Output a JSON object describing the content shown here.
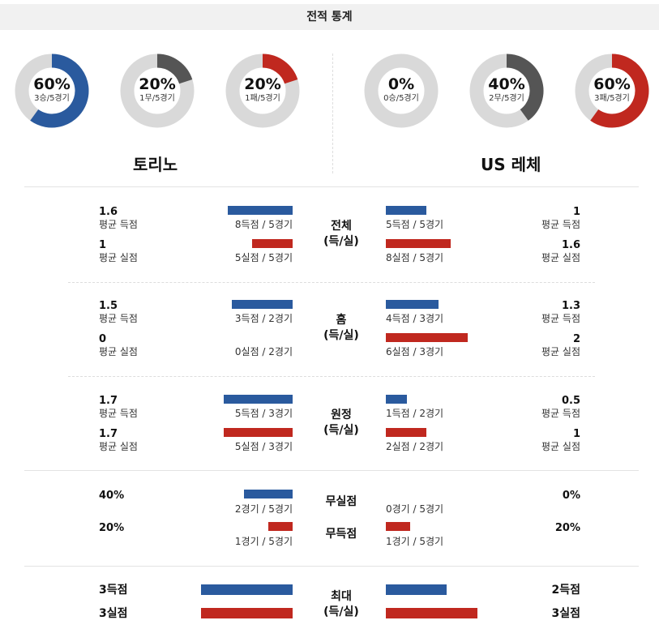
{
  "header": {
    "title": "전적 통계"
  },
  "teams": {
    "home": "토리노",
    "away": "US 레체"
  },
  "donuts": [
    {
      "pct": "60%",
      "sub": "3승/5경기",
      "fraction": 0.6,
      "color": "#2a5a9e"
    },
    {
      "pct": "20%",
      "sub": "1무/5경기",
      "fraction": 0.2,
      "color": "#555555"
    },
    {
      "pct": "20%",
      "sub": "1패/5경기",
      "fraction": 0.2,
      "color": "#c0281f"
    },
    {
      "pct": "0%",
      "sub": "0승/5경기",
      "fraction": 0.0,
      "color": "#2a5a9e"
    },
    {
      "pct": "40%",
      "sub": "2무/5경기",
      "fraction": 0.4,
      "color": "#555555"
    },
    {
      "pct": "60%",
      "sub": "3패/5경기",
      "fraction": 0.6,
      "color": "#c0281f"
    }
  ],
  "labels": {
    "avg_scored": "평균 득점",
    "avg_conceded": "평균 실점"
  },
  "sections": {
    "overall": {
      "title1": "전체",
      "title2": "(득/실)",
      "home": {
        "scored": "1.6",
        "conceded": "1",
        "scored_cap": "8득점 / 5경기",
        "conceded_cap": "5실점 / 5경기",
        "scored_frac": 0.53,
        "conceded_frac": 0.33
      },
      "away": {
        "scored": "1",
        "conceded": "1.6",
        "scored_cap": "5득점 / 5경기",
        "conceded_cap": "8실점 / 5경기",
        "scored_frac": 0.33,
        "conceded_frac": 0.53
      }
    },
    "home_games": {
      "title1": "홈",
      "title2": "(득/실)",
      "home": {
        "scored": "1.5",
        "conceded": "0",
        "scored_cap": "3득점 / 2경기",
        "conceded_cap": "0실점 / 2경기",
        "scored_frac": 0.5,
        "conceded_frac": 0.0
      },
      "away": {
        "scored": "1.3",
        "conceded": "2",
        "scored_cap": "4득점 / 3경기",
        "conceded_cap": "6실점 / 3경기",
        "scored_frac": 0.43,
        "conceded_frac": 0.67
      }
    },
    "away_games": {
      "title1": "원정",
      "title2": "(득/실)",
      "home": {
        "scored": "1.7",
        "conceded": "1.7",
        "scored_cap": "5득점 / 3경기",
        "conceded_cap": "5실점 / 3경기",
        "scored_frac": 0.57,
        "conceded_frac": 0.57
      },
      "away": {
        "scored": "0.5",
        "conceded": "1",
        "scored_cap": "1득점 / 2경기",
        "conceded_cap": "2실점 / 2경기",
        "scored_frac": 0.17,
        "conceded_frac": 0.33
      }
    }
  },
  "clean_sheet": {
    "title": "무실점",
    "home": {
      "pct": "40%",
      "cap": "2경기 / 5경기",
      "frac": 0.4
    },
    "away": {
      "pct": "0%",
      "cap": "0경기 / 5경기",
      "frac": 0.0
    }
  },
  "no_goal": {
    "title": "무득점",
    "home": {
      "pct": "20%",
      "cap": "1경기 / 5경기",
      "frac": 0.2
    },
    "away": {
      "pct": "20%",
      "cap": "1경기 / 5경기",
      "frac": 0.2
    }
  },
  "max": {
    "title1": "최대",
    "title2": "(득/실)",
    "home": {
      "scored": "3득점",
      "conceded": "3실점",
      "scored_frac": 0.75,
      "conceded_frac": 0.75
    },
    "away": {
      "scored": "2득점",
      "conceded": "3실점",
      "scored_frac": 0.5,
      "conceded_frac": 0.75
    }
  }
}
